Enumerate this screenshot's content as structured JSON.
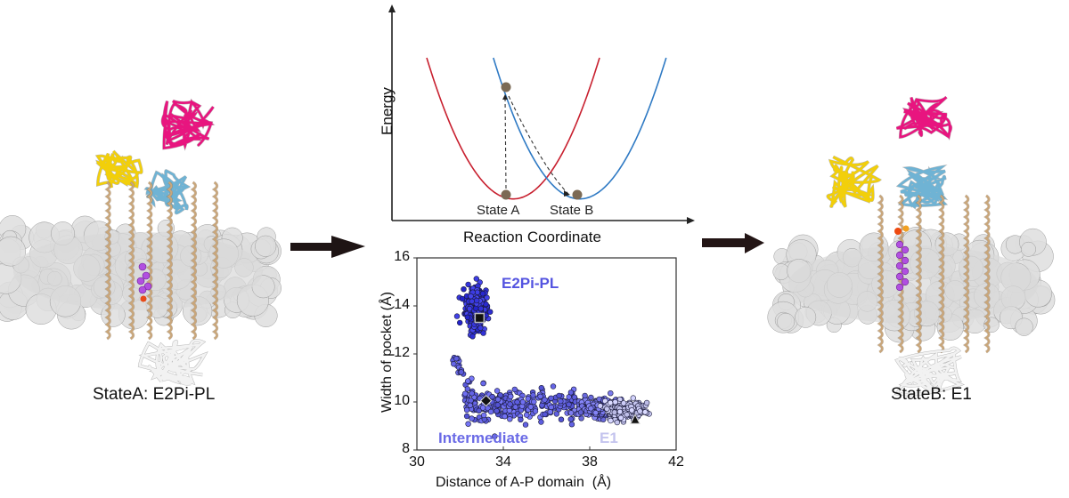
{
  "left_panel": {
    "caption": "StateA: E2Pi-PL",
    "structure_label": "protein-structure-state-a"
  },
  "right_panel": {
    "caption": "StateB: E1",
    "structure_label": "protein-structure-state-b"
  },
  "arrows": [
    "left-to-center",
    "center-to-right"
  ],
  "colors": {
    "domain_A": "#e8157f",
    "domain_N": "#f2cf0a",
    "domain_P": "#6fb3d4",
    "tm": "#c9a67a",
    "ligand": "#b14fe0",
    "membrane": "#d4d4d4",
    "curve_A": "#c8202f",
    "curve_B": "#2f7ac4",
    "state_dot": "#7b6a55",
    "scatter_dark": "#2a2ad8",
    "scatter_mid": "#6b6be8",
    "scatter_light": "#c5c5f2",
    "label_e2": "#5454e0",
    "label_e1": "#c4c4ee"
  },
  "chart_data": [
    {
      "type": "line",
      "title": "",
      "xlabel": "Reaction Coordinate",
      "ylabel": "Energy",
      "axes_ticks": "none",
      "series": [
        {
          "name": "State A well",
          "color": "#c8202f",
          "shape": "parabola",
          "minimum_x": 0.4,
          "minimum_y": 0.1
        },
        {
          "name": "State B well",
          "color": "#2f7ac4",
          "shape": "parabola",
          "minimum_x": 0.62,
          "minimum_y": 0.1
        }
      ],
      "points": [
        {
          "label": "State A",
          "x": 0.38,
          "y": 0.12
        },
        {
          "label": "",
          "x": 0.38,
          "y": 0.65
        },
        {
          "label": "State B",
          "x": 0.61,
          "y": 0.12
        }
      ],
      "annotations": [
        "State A",
        "State B",
        "dashed excitation arrow State A upward",
        "dashed relaxation arrow to State B"
      ]
    },
    {
      "type": "scatter",
      "title": "",
      "xlabel": "Distance of A-P domain  (Å)",
      "ylabel": "Width of pocket (Å)",
      "xlim": [
        30,
        42
      ],
      "ylim": [
        8,
        16
      ],
      "xticks": [
        "30",
        "34",
        "38",
        "42"
      ],
      "yticks": [
        "8",
        "10",
        "12",
        "14",
        "16"
      ],
      "grid": false,
      "clusters": [
        {
          "name": "E2Pi-PL",
          "center": [
            32.7,
            13.9
          ],
          "spread": [
            0.35,
            0.65
          ],
          "count": 520,
          "color": "#3535dc",
          "representative": {
            "marker": "square",
            "x": 32.9,
            "y": 13.5
          }
        },
        {
          "name": "Intermediate",
          "center": [
            34.2,
            9.9
          ],
          "spread": [
            1.3,
            0.35
          ],
          "count": 260,
          "color": "#6565e6",
          "representative": {
            "marker": "diamond",
            "x": 33.2,
            "y": 10.05
          }
        },
        {
          "name": "Transition",
          "center": [
            31.9,
            11.4
          ],
          "spread": [
            0.25,
            0.4
          ],
          "count": 18,
          "color": "#6565e6"
        },
        {
          "name": "E1-mid",
          "center": [
            38.4,
            9.75
          ],
          "spread": [
            0.7,
            0.3
          ],
          "count": 260,
          "color": "#7474e6"
        },
        {
          "name": "E1",
          "center": [
            39.6,
            9.65
          ],
          "spread": [
            0.7,
            0.3
          ],
          "count": 320,
          "color": "#c8c8f2",
          "representative": {
            "marker": "triangle",
            "x": 40.1,
            "y": 9.25
          }
        }
      ],
      "labels": [
        {
          "text": "E2Pi-PL",
          "color": "#5454e0"
        },
        {
          "text": "Intermediate",
          "color": "#6a6ae6"
        },
        {
          "text": "E1",
          "color": "#c4c4ee"
        }
      ]
    }
  ]
}
